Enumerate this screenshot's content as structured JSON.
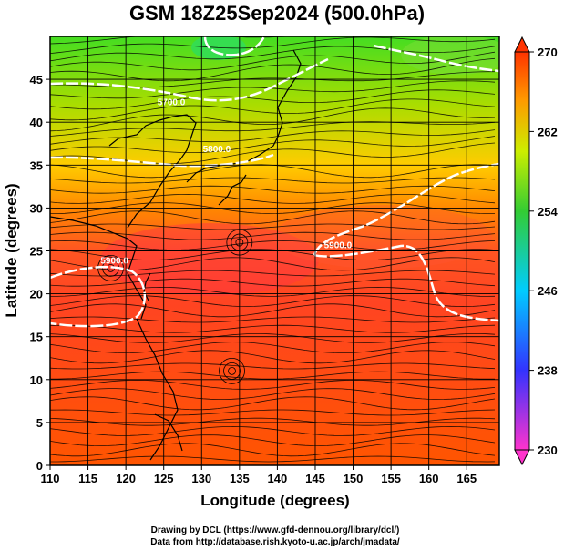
{
  "title": "GSM 18Z25Sep2024 (500.0hPa)",
  "map": {
    "xlabel": "Longitude (degrees)",
    "ylabel": "Latitude  (degrees)",
    "xlim": [
      110,
      170
    ],
    "ylim": [
      0,
      50
    ],
    "xticks": [
      "110",
      "115",
      "120",
      "125",
      "130",
      "135",
      "140",
      "145",
      "150",
      "155",
      "160",
      "165"
    ],
    "yticks": [
      "0",
      "5",
      "10",
      "15",
      "20",
      "25",
      "30",
      "35",
      "40",
      "45"
    ],
    "grid": true,
    "contour_labels": [
      {
        "text": "5900.0",
        "lon": 118.5,
        "lat": 23.5
      },
      {
        "text": "5900.0",
        "lon": 148.0,
        "lat": 25.3
      },
      {
        "text": "5800.0",
        "lon": 132.0,
        "lat": 36.5
      },
      {
        "text": "5700.0",
        "lon": 126.0,
        "lat": 42.0
      }
    ]
  },
  "colorbar": {
    "ticks": [
      "230",
      "238",
      "246",
      "254",
      "262",
      "270"
    ],
    "min": 230,
    "max": 270,
    "colors": [
      "#ff33cc",
      "#3333ff",
      "#00ccff",
      "#33cc33",
      "#ccee00",
      "#ff9900",
      "#ff3300"
    ]
  },
  "credits": {
    "line1": "Drawing by DCL (https://www.gfd-dennou.org/library/dcl/)",
    "line2": "Data from http://database.rish.kyoto-u.ac.jp/arch/jmadata/"
  }
}
